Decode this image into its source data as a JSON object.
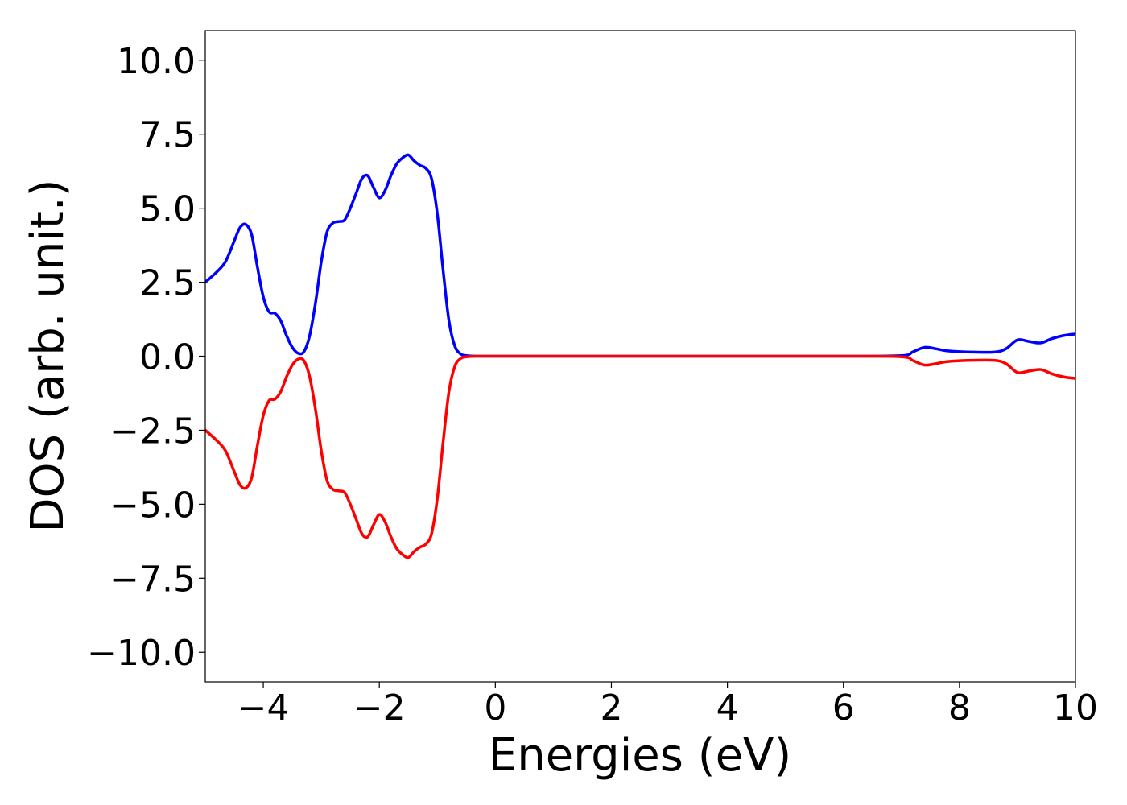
{
  "chart_data": {
    "type": "line",
    "xlabel": "Energies (eV)",
    "ylabel": "DOS (arb. unit.)",
    "xlim": [
      -5,
      10
    ],
    "ylim": [
      -11,
      11
    ],
    "x_ticks": [
      -4,
      -2,
      0,
      2,
      4,
      6,
      8,
      10
    ],
    "x_tick_labels": [
      "−4",
      "−2",
      "0",
      "2",
      "4",
      "6",
      "8",
      "10"
    ],
    "y_ticks": [
      10.0,
      7.5,
      5.0,
      2.5,
      0.0,
      -2.5,
      -5.0,
      -7.5,
      -10.0
    ],
    "y_tick_labels": [
      "10.0",
      "7.5",
      "5.0",
      "2.5",
      "0.0",
      "−2.5",
      "−5.0",
      "−7.5",
      "−10.0"
    ],
    "grid": false,
    "legend": "none",
    "series": [
      {
        "color": "#0000ff",
        "x": [
          -5.0,
          -4.8,
          -4.65,
          -4.5,
          -4.4,
          -4.3,
          -4.2,
          -4.1,
          -4.0,
          -3.9,
          -3.8,
          -3.7,
          -3.6,
          -3.5,
          -3.4,
          -3.3,
          -3.2,
          -3.1,
          -3.0,
          -2.9,
          -2.8,
          -2.7,
          -2.6,
          -2.5,
          -2.4,
          -2.3,
          -2.2,
          -2.1,
          -2.0,
          -1.9,
          -1.8,
          -1.7,
          -1.6,
          -1.5,
          -1.4,
          -1.3,
          -1.2,
          -1.1,
          -1.0,
          -0.9,
          -0.8,
          -0.7,
          -0.6,
          -0.5,
          -0.3,
          0.0,
          2.0,
          4.0,
          6.0,
          7.0,
          7.2,
          7.4,
          7.6,
          7.8,
          8.2,
          8.6,
          8.8,
          9.0,
          9.2,
          9.4,
          9.6,
          9.8,
          10.0
        ],
        "y": [
          2.5,
          2.85,
          3.2,
          3.9,
          4.35,
          4.45,
          4.1,
          3.0,
          2.0,
          1.5,
          1.45,
          1.2,
          0.7,
          0.3,
          0.1,
          0.15,
          0.7,
          1.8,
          3.2,
          4.2,
          4.5,
          4.55,
          4.6,
          5.0,
          5.5,
          6.0,
          6.1,
          5.7,
          5.35,
          5.6,
          6.1,
          6.5,
          6.7,
          6.8,
          6.6,
          6.45,
          6.35,
          6.0,
          4.8,
          2.9,
          1.2,
          0.35,
          0.08,
          0.02,
          0.0,
          0.0,
          0.0,
          0.0,
          0.0,
          0.02,
          0.15,
          0.3,
          0.25,
          0.18,
          0.14,
          0.14,
          0.25,
          0.55,
          0.5,
          0.45,
          0.6,
          0.7,
          0.75
        ]
      },
      {
        "color": "#ff0000",
        "x": [
          -5.0,
          -4.8,
          -4.65,
          -4.5,
          -4.4,
          -4.3,
          -4.2,
          -4.1,
          -4.0,
          -3.9,
          -3.8,
          -3.7,
          -3.6,
          -3.5,
          -3.4,
          -3.3,
          -3.2,
          -3.1,
          -3.0,
          -2.9,
          -2.8,
          -2.7,
          -2.6,
          -2.5,
          -2.4,
          -2.3,
          -2.2,
          -2.1,
          -2.0,
          -1.9,
          -1.8,
          -1.7,
          -1.6,
          -1.5,
          -1.4,
          -1.3,
          -1.2,
          -1.1,
          -1.0,
          -0.9,
          -0.8,
          -0.7,
          -0.6,
          -0.5,
          -0.3,
          0.0,
          2.0,
          4.0,
          6.0,
          7.0,
          7.2,
          7.4,
          7.6,
          7.8,
          8.2,
          8.6,
          8.8,
          9.0,
          9.2,
          9.4,
          9.6,
          9.8,
          10.0
        ],
        "y": [
          -2.5,
          -2.85,
          -3.2,
          -3.9,
          -4.35,
          -4.45,
          -4.1,
          -3.0,
          -2.0,
          -1.5,
          -1.45,
          -1.2,
          -0.7,
          -0.3,
          -0.1,
          -0.15,
          -0.7,
          -1.8,
          -3.2,
          -4.2,
          -4.5,
          -4.55,
          -4.6,
          -5.0,
          -5.5,
          -6.0,
          -6.1,
          -5.7,
          -5.35,
          -5.6,
          -6.1,
          -6.5,
          -6.7,
          -6.8,
          -6.6,
          -6.45,
          -6.35,
          -6.0,
          -4.8,
          -2.9,
          -1.2,
          -0.35,
          -0.08,
          -0.02,
          0.0,
          0.0,
          0.0,
          0.0,
          0.0,
          -0.02,
          -0.15,
          -0.3,
          -0.25,
          -0.18,
          -0.14,
          -0.14,
          -0.25,
          -0.55,
          -0.5,
          -0.45,
          -0.6,
          -0.7,
          -0.75
        ]
      }
    ]
  }
}
